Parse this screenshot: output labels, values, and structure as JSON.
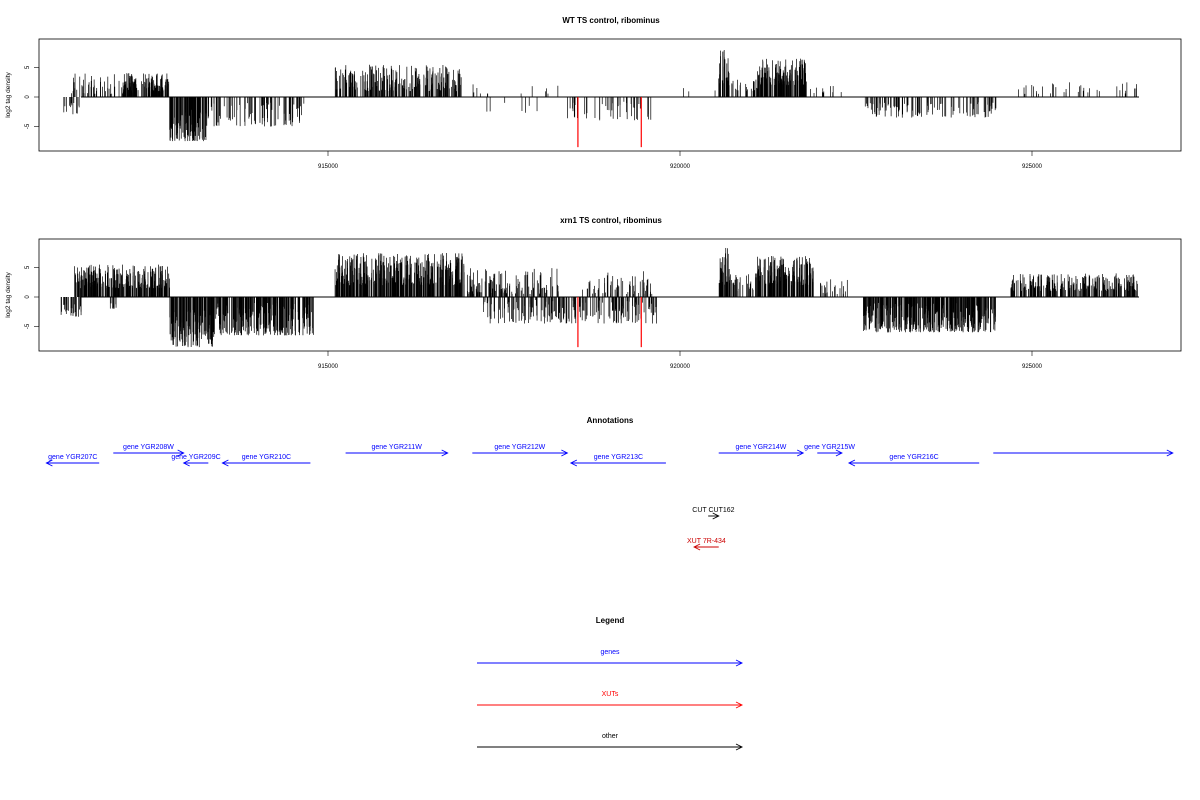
{
  "chart_data": [
    {
      "type": "bar",
      "title": "WT TS control, ribominus",
      "ylabel": "log2 tag density",
      "xlim": [
        911000,
        927000
      ],
      "ylim": [
        -9,
        9
      ],
      "x_ticks": [
        915000,
        920000,
        925000
      ],
      "x_tick_labels": [
        "915000",
        "920000",
        "925000"
      ],
      "y_ticks": [
        -5,
        0,
        5
      ],
      "y_tick_labels": [
        "-5",
        "0",
        "5"
      ],
      "grid": false,
      "signal_regions": [
        {
          "start": 911200,
          "end": 911500,
          "min": -3,
          "max": -1,
          "density": 0.4
        },
        {
          "start": 911350,
          "end": 912650,
          "min": 0.5,
          "max": 4,
          "density": 0.5
        },
        {
          "start": 912100,
          "end": 912300,
          "min": 1.5,
          "max": 4.2,
          "density": 0.8
        },
        {
          "start": 912400,
          "end": 912750,
          "min": 1,
          "max": 4,
          "density": 0.8
        },
        {
          "start": 912750,
          "end": 913300,
          "min": -7.5,
          "max": -2,
          "density": 1.0
        },
        {
          "start": 913300,
          "end": 914700,
          "min": -5,
          "max": -0.8,
          "density": 0.45
        },
        {
          "start": 915100,
          "end": 916900,
          "min": 1,
          "max": 5.5,
          "density": 0.7
        },
        {
          "start": 916900,
          "end": 918300,
          "min": 0.5,
          "max": 2.5,
          "density": 0.15
        },
        {
          "start": 917200,
          "end": 918400,
          "min": -3,
          "max": -0.8,
          "density": 0.12
        },
        {
          "start": 918400,
          "end": 919600,
          "min": -4,
          "max": -0.8,
          "density": 0.35
        },
        {
          "start": 919700,
          "end": 920700,
          "min": 0.5,
          "max": 2.5,
          "density": 0.12
        },
        {
          "start": 920550,
          "end": 920700,
          "min": 2,
          "max": 8,
          "density": 1.0
        },
        {
          "start": 920700,
          "end": 921100,
          "min": 1,
          "max": 3,
          "density": 0.5
        },
        {
          "start": 921100,
          "end": 921800,
          "min": 2,
          "max": 6.5,
          "density": 1.0
        },
        {
          "start": 921800,
          "end": 922300,
          "min": 0.5,
          "max": 2,
          "density": 0.3
        },
        {
          "start": 922600,
          "end": 924500,
          "min": -3.5,
          "max": -0.8,
          "density": 0.45
        },
        {
          "start": 924800,
          "end": 926500,
          "min": 0.5,
          "max": 2.5,
          "density": 0.25
        }
      ],
      "highlights": [
        {
          "x": 918550,
          "y": -8.5,
          "color": "#ff0000"
        },
        {
          "x": 919450,
          "y": -8.5,
          "color": "#ff0000"
        }
      ],
      "bar_color": "#000000"
    },
    {
      "type": "bar",
      "title": "xrn1 TS control, ribominus",
      "ylabel": "log2 tag density",
      "xlim": [
        911000,
        927000
      ],
      "ylim": [
        -9,
        9
      ],
      "x_ticks": [
        915000,
        920000,
        925000
      ],
      "x_tick_labels": [
        "915000",
        "920000",
        "925000"
      ],
      "y_ticks": [
        -5,
        0,
        5
      ],
      "y_tick_labels": [
        "-5",
        "0",
        "5"
      ],
      "grid": false,
      "signal_regions": [
        {
          "start": 911200,
          "end": 911500,
          "min": -3.5,
          "max": -1,
          "density": 0.6
        },
        {
          "start": 911400,
          "end": 912750,
          "min": 1.5,
          "max": 5.5,
          "density": 0.9
        },
        {
          "start": 911900,
          "end": 912000,
          "min": -2,
          "max": -1,
          "density": 0.5
        },
        {
          "start": 912750,
          "end": 913400,
          "min": -8.5,
          "max": -2,
          "density": 1.0
        },
        {
          "start": 913400,
          "end": 914800,
          "min": -6.5,
          "max": -1,
          "density": 0.9
        },
        {
          "start": 915100,
          "end": 916950,
          "min": 2,
          "max": 7.5,
          "density": 0.95
        },
        {
          "start": 916950,
          "end": 918300,
          "min": 0.5,
          "max": 5,
          "density": 0.6
        },
        {
          "start": 917200,
          "end": 919700,
          "min": -4.5,
          "max": -0.5,
          "density": 0.55
        },
        {
          "start": 918600,
          "end": 919600,
          "min": 0.5,
          "max": 4.5,
          "density": 0.45
        },
        {
          "start": 920550,
          "end": 920700,
          "min": 2,
          "max": 8.5,
          "density": 1.0
        },
        {
          "start": 920700,
          "end": 921100,
          "min": 1,
          "max": 4,
          "density": 0.6
        },
        {
          "start": 921100,
          "end": 921900,
          "min": 2,
          "max": 7,
          "density": 1.0
        },
        {
          "start": 921900,
          "end": 922400,
          "min": 0.5,
          "max": 3,
          "density": 0.4
        },
        {
          "start": 922600,
          "end": 924500,
          "min": -6,
          "max": -1,
          "density": 0.95
        },
        {
          "start": 924700,
          "end": 926500,
          "min": 1,
          "max": 4,
          "density": 0.75
        }
      ],
      "highlights": [
        {
          "x": 918550,
          "y": -8.5,
          "color": "#ff0000"
        },
        {
          "x": 919450,
          "y": -8.5,
          "color": "#ff0000"
        }
      ],
      "bar_color": "#000000"
    },
    {
      "type": "annotation-track",
      "title": "Annotations",
      "xlim": [
        911000,
        927000
      ],
      "features": [
        {
          "name": "gene YGR207C",
          "start": 911000,
          "end": 911750,
          "strand": "-",
          "row": 0,
          "color": "#0000ff"
        },
        {
          "name": "gene YGR208W",
          "start": 911950,
          "end": 912950,
          "strand": "+",
          "row": 1,
          "color": "#0000ff"
        },
        {
          "name": "gene YGR209C",
          "start": 912950,
          "end": 913300,
          "strand": "-",
          "row": 0,
          "color": "#0000ff"
        },
        {
          "name": "gene YGR210C",
          "start": 913500,
          "end": 914750,
          "strand": "-",
          "row": 0,
          "color": "#0000ff"
        },
        {
          "name": "gene YGR211W",
          "start": 915250,
          "end": 916700,
          "strand": "+",
          "row": 1,
          "color": "#0000ff"
        },
        {
          "name": "gene YGR212W",
          "start": 917050,
          "end": 918400,
          "strand": "+",
          "row": 1,
          "color": "#0000ff"
        },
        {
          "name": "gene YGR213C",
          "start": 918450,
          "end": 919800,
          "strand": "-",
          "row": 0,
          "color": "#0000ff"
        },
        {
          "name": "gene YGR214W",
          "start": 920550,
          "end": 921750,
          "strand": "+",
          "row": 1,
          "color": "#0000ff"
        },
        {
          "name": "gene YGR215W",
          "start": 921950,
          "end": 922300,
          "strand": "+",
          "row": 1,
          "color": "#0000ff"
        },
        {
          "name": "gene YGR216C",
          "start": 922400,
          "end": 924250,
          "strand": "-",
          "row": 0,
          "color": "#0000ff"
        },
        {
          "name": "",
          "start": 924450,
          "end": 927000,
          "strand": "+",
          "row": 1,
          "color": "#0000ff"
        },
        {
          "name": "CUT CUT162",
          "start": 920400,
          "end": 920550,
          "strand": "+",
          "row": 2,
          "color": "#000000"
        },
        {
          "name": "XUT 7R-434",
          "start": 920200,
          "end": 920550,
          "strand": "-",
          "row": 3,
          "color": "#cc0000"
        }
      ]
    },
    {
      "type": "legend",
      "title": "Legend",
      "entries": [
        {
          "label": "genes",
          "color": "#0000ff"
        },
        {
          "label": "XUTs",
          "color": "#ff0000"
        },
        {
          "label": "other",
          "color": "#000000"
        }
      ]
    }
  ]
}
